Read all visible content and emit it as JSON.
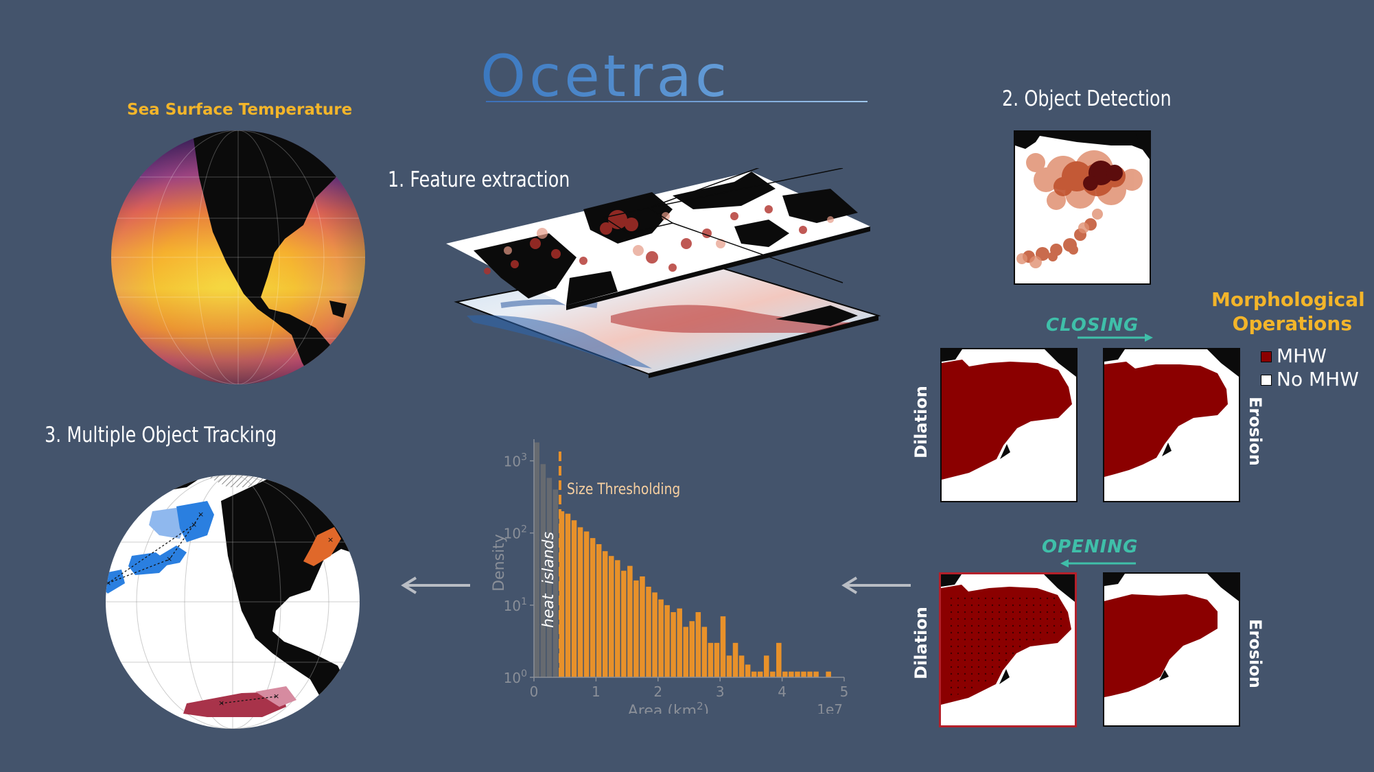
{
  "title": "Ocetrac",
  "globe_sst": {
    "label": "Sea Surface Temperature"
  },
  "steps": {
    "feature_extraction": "1.  Feature extraction",
    "object_detection": "2.  Object Detection",
    "tracking": "3.  Multiple Object Tracking"
  },
  "morphology": {
    "title_line1": "Morphological",
    "title_line2": "Operations",
    "closing": "CLOSING",
    "opening": "OPENING",
    "dilation": "Dilation",
    "erosion": "Erosion",
    "legend": [
      {
        "label": "MHW",
        "color": "#8b0000"
      },
      {
        "label": "No MHW",
        "color": "#ffffff"
      }
    ]
  },
  "colors": {
    "background": "#44546c",
    "accent_gold": "#f3b52a",
    "accent_teal": "#3fbfa9",
    "mhw_red": "#8b0000",
    "hist_orange": "#e8912a",
    "hist_gray": "#666a70"
  },
  "chart_data": {
    "type": "bar",
    "title": "",
    "xlabel": "Area (km",
    "xlabel_sup": "2",
    "xlabel_close": ")",
    "ylabel": "Density",
    "x_offset_label": "1e7",
    "x_ticks": [
      "0",
      "1",
      "2",
      "3",
      "4",
      "5"
    ],
    "y_ticks": [
      {
        "base": "10",
        "exp": "0"
      },
      {
        "base": "10",
        "exp": "1"
      },
      {
        "base": "10",
        "exp": "2"
      },
      {
        "base": "10",
        "exp": "3"
      }
    ],
    "xlim": [
      0,
      5
    ],
    "ylim_log10": [
      0,
      3.3
    ],
    "y_scale": "log",
    "threshold": {
      "x": 0.42,
      "label": "Size Thresholding"
    },
    "excluded_label": "heat  islands",
    "bins_width": 0.1,
    "gray_bins": [
      {
        "x": 0.0,
        "value": 1800
      },
      {
        "x": 0.1,
        "value": 900
      },
      {
        "x": 0.2,
        "value": 580
      },
      {
        "x": 0.3,
        "value": 400
      }
    ],
    "orange_bins": [
      {
        "x": 0.45,
        "value": 200
      },
      {
        "x": 0.55,
        "value": 185
      },
      {
        "x": 0.65,
        "value": 150
      },
      {
        "x": 0.75,
        "value": 120
      },
      {
        "x": 0.85,
        "value": 105
      },
      {
        "x": 0.95,
        "value": 85
      },
      {
        "x": 1.05,
        "value": 70
      },
      {
        "x": 1.15,
        "value": 56
      },
      {
        "x": 1.25,
        "value": 48
      },
      {
        "x": 1.35,
        "value": 42
      },
      {
        "x": 1.45,
        "value": 30
      },
      {
        "x": 1.55,
        "value": 35
      },
      {
        "x": 1.65,
        "value": 22
      },
      {
        "x": 1.75,
        "value": 25
      },
      {
        "x": 1.85,
        "value": 18
      },
      {
        "x": 1.95,
        "value": 15
      },
      {
        "x": 2.05,
        "value": 12
      },
      {
        "x": 2.15,
        "value": 10
      },
      {
        "x": 2.25,
        "value": 8
      },
      {
        "x": 2.35,
        "value": 9
      },
      {
        "x": 2.45,
        "value": 5
      },
      {
        "x": 2.55,
        "value": 6
      },
      {
        "x": 2.65,
        "value": 8
      },
      {
        "x": 2.75,
        "value": 5
      },
      {
        "x": 2.85,
        "value": 3
      },
      {
        "x": 2.95,
        "value": 3
      },
      {
        "x": 3.05,
        "value": 7
      },
      {
        "x": 3.15,
        "value": 2
      },
      {
        "x": 3.25,
        "value": 3
      },
      {
        "x": 3.35,
        "value": 2
      },
      {
        "x": 3.45,
        "value": 1.5
      },
      {
        "x": 3.55,
        "value": 1.2
      },
      {
        "x": 3.65,
        "value": 1.2
      },
      {
        "x": 3.75,
        "value": 2
      },
      {
        "x": 3.85,
        "value": 1.2
      },
      {
        "x": 3.95,
        "value": 3
      },
      {
        "x": 4.05,
        "value": 1.2
      },
      {
        "x": 4.15,
        "value": 1.2
      },
      {
        "x": 4.25,
        "value": 1.2
      },
      {
        "x": 4.35,
        "value": 1.2
      },
      {
        "x": 4.45,
        "value": 1.2
      },
      {
        "x": 4.55,
        "value": 1.2
      },
      {
        "x": 4.75,
        "value": 1.2
      }
    ]
  }
}
